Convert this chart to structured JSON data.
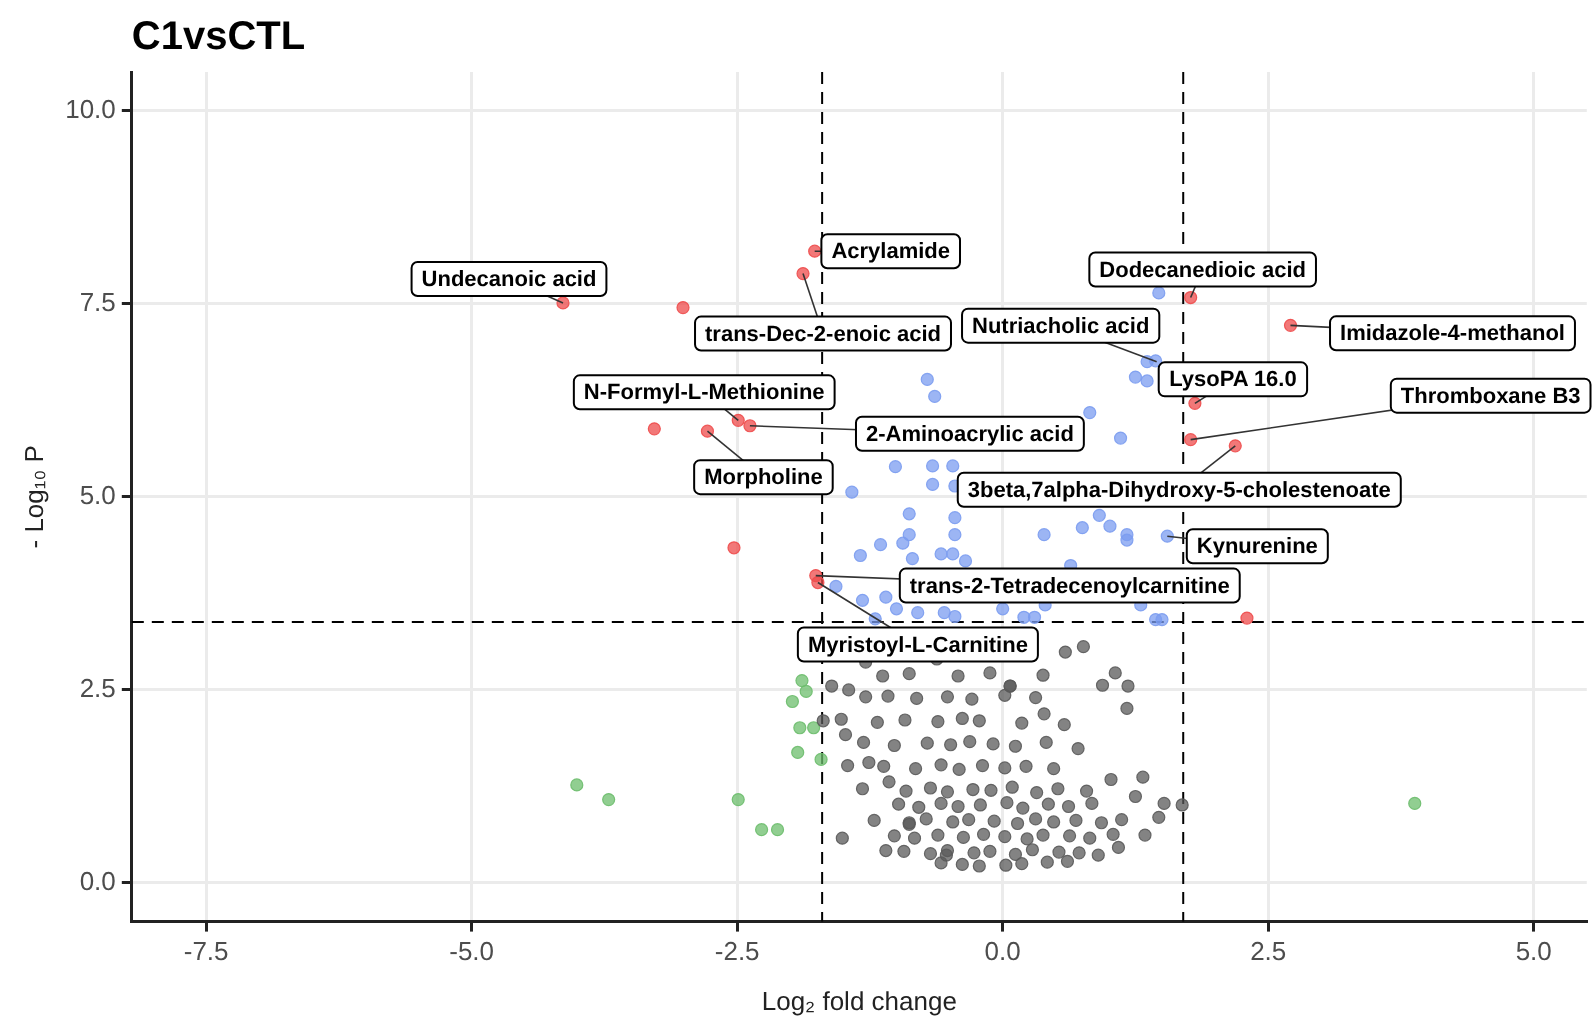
{
  "chart_data": {
    "type": "scatter",
    "title": "C1vsCTL",
    "xlabel": "Log₂ fold change",
    "ylabel": "- Log₁₀ P",
    "xlim": [
      -8.2,
      5.5
    ],
    "ylim": [
      -0.5,
      10.5
    ],
    "xticks": [
      -7.5,
      {
        "value": -5,
        "label": "-5.0"
      },
      -2.5,
      {
        "value": 0,
        "label": "0.0"
      },
      2.5,
      {
        "value": 5,
        "label": "5.0"
      }
    ],
    "yticks": [
      {
        "value": 0,
        "label": "0.0"
      },
      2.5,
      {
        "value": 5,
        "label": "5.0"
      },
      7.5,
      {
        "value": 10,
        "label": "10.0"
      }
    ],
    "grid": true,
    "legend": false,
    "marker": "circle",
    "ref_lines": [
      {
        "axis": "x",
        "value": -1.7,
        "line_style": "dashed",
        "color": "#000000"
      },
      {
        "axis": "x",
        "value": 1.7,
        "line_style": "dashed",
        "color": "#000000"
      },
      {
        "axis": "y",
        "value": 3.38,
        "line_style": "dashed",
        "color": "#000000"
      }
    ],
    "series": [
      {
        "color": "#5a5a5a",
        "x": [
          -1.61,
          -1.45,
          -1.29,
          -1.13,
          -1.48,
          -1.46,
          -1.26,
          -1.07,
          -0.88,
          -0.53,
          -1.29,
          -0.62,
          0.07,
          0.76,
          0.59,
          1.06,
          1.18,
          1.17,
          0.94,
          1.02,
          1.32,
          1.25,
          1.52,
          1.69,
          1.47,
          1.34,
          1.09,
          0.9,
          0.07,
          0.71,
          0.58,
          0.39,
          -1.51,
          -1.1,
          -1.69,
          -0.58,
          -0.38,
          -0.22,
          0.03,
          0.18,
          0.42,
          0.61,
          -0.93,
          -0.68,
          -0.52,
          -0.27,
          -0.12,
          0.12,
          0.28,
          0.53,
          0.72,
          -1.02,
          -0.83,
          -0.61,
          -0.37,
          -0.18,
          0.02,
          0.23,
          0.38,
          0.63,
          0.82,
          1.04,
          -1.21,
          -0.88,
          -0.72,
          -0.47,
          -0.32,
          -0.08,
          0.14,
          0.31,
          0.48,
          0.69,
          0.93,
          1.12,
          -0.98,
          -0.79,
          -0.58,
          -0.42,
          -0.21,
          0.04,
          0.19,
          0.43,
          0.62,
          0.84,
          -1.32,
          -0.91,
          -0.68,
          -0.52,
          -0.28,
          -0.11,
          0.09,
          0.32,
          0.52,
          0.79,
          -1.12,
          -0.82,
          -0.58,
          -0.41,
          -0.19,
          0.02,
          0.22,
          0.48,
          -1.31,
          -1.02,
          -0.71,
          -0.49,
          -0.31,
          -0.09,
          0.12,
          0.41,
          -1.52,
          -1.18,
          -0.92,
          -0.61,
          -0.38,
          -0.22,
          0.18,
          -1.08,
          -0.81,
          -0.52,
          -0.29,
          0.02,
          0.31,
          -0.88,
          -0.42,
          -0.12,
          0.38
        ],
        "values": [
          2.55,
          2.5,
          2.41,
          2.68,
          1.92,
          1.52,
          1.56,
          1.31,
          0.76,
          0.36,
          2.86,
          2.9,
          2.55,
          3.06,
          2.99,
          2.72,
          2.55,
          2.26,
          2.56,
          1.34,
          1.37,
          1.12,
          1.03,
          1.01,
          0.85,
          0.62,
          0.46,
          0.36,
          2.55,
          1.74,
          2.05,
          2.19,
          0.58,
          0.42,
          2.1,
          0.26,
          0.24,
          0.22,
          0.23,
          0.25,
          0.27,
          0.28,
          0.41,
          0.38,
          0.42,
          0.39,
          0.41,
          0.37,
          0.43,
          0.4,
          0.39,
          0.61,
          0.58,
          0.62,
          0.59,
          0.63,
          0.6,
          0.57,
          0.62,
          0.61,
          0.58,
          0.63,
          0.81,
          0.78,
          0.83,
          0.79,
          0.82,
          0.8,
          0.77,
          0.83,
          0.79,
          0.81,
          0.78,
          0.82,
          1.02,
          0.98,
          1.03,
          0.99,
          1.01,
          1.04,
          0.97,
          1.02,
          0.99,
          1.03,
          1.22,
          1.19,
          1.23,
          1.18,
          1.21,
          1.2,
          1.24,
          1.17,
          1.22,
          1.19,
          1.51,
          1.48,
          1.53,
          1.47,
          1.52,
          1.49,
          1.51,
          1.48,
          1.82,
          1.78,
          1.81,
          1.79,
          1.83,
          1.8,
          1.77,
          1.82,
          2.12,
          2.08,
          2.11,
          2.09,
          2.13,
          2.1,
          2.07,
          2.42,
          2.39,
          2.41,
          2.38,
          2.43,
          2.4,
          2.71,
          2.68,
          2.72,
          2.69
        ]
      },
      {
        "color": "#6cbd6c",
        "x": [
          -4.01,
          -3.71,
          -2.49,
          -2.27,
          -2.12,
          -1.89,
          -1.85,
          -1.98,
          -1.91,
          -1.78,
          -1.93,
          -1.71,
          3.88
        ],
        "values": [
          1.27,
          1.08,
          1.08,
          0.69,
          0.69,
          2.62,
          2.48,
          2.35,
          2.01,
          2.01,
          1.69,
          1.6,
          1.03
        ]
      },
      {
        "color": "#7b9cf0",
        "x": [
          -1.01,
          -1.42,
          -0.88,
          -1.34,
          -1.15,
          -0.94,
          -0.88,
          -0.85,
          -1.57,
          -1.32,
          -1.2,
          1.47,
          1.36,
          1.44,
          1.25,
          1.36,
          -0.71,
          -0.64,
          0.82,
          1.11,
          -0.66,
          -0.47,
          -0.66,
          -0.45,
          -0.45,
          -0.45,
          0.39,
          0.75,
          0.91,
          1.01,
          1.17,
          1.17,
          1.55,
          -0.58,
          -0.47,
          -0.35,
          0.64,
          1.44,
          1.5,
          -1.0,
          -0.8,
          -0.55,
          -0.45,
          0.2,
          0.3,
          0.4,
          0.0,
          -1.1,
          1.3
        ],
        "values": [
          5.39,
          5.06,
          4.78,
          4.24,
          4.38,
          4.4,
          4.51,
          4.2,
          3.84,
          3.66,
          3.42,
          7.64,
          6.75,
          6.76,
          6.55,
          6.5,
          6.52,
          6.3,
          6.09,
          5.76,
          5.4,
          5.4,
          5.16,
          5.14,
          4.73,
          4.51,
          4.51,
          4.6,
          4.76,
          4.62,
          4.51,
          4.44,
          4.49,
          4.26,
          4.26,
          4.17,
          4.11,
          3.41,
          3.41,
          3.55,
          3.5,
          3.5,
          3.45,
          3.44,
          3.44,
          3.6,
          3.55,
          3.7,
          3.6
        ]
      },
      {
        "color": "#ee4b4b",
        "x": [
          -1.77,
          -1.88,
          -4.14,
          -3.01,
          -3.28,
          -2.78,
          -2.49,
          -2.38,
          -2.53,
          -1.76,
          -1.74,
          1.77,
          2.71,
          1.81,
          1.77,
          2.19,
          2.3
        ],
        "values": [
          8.18,
          7.89,
          7.51,
          7.45,
          5.88,
          5.85,
          5.99,
          5.92,
          4.34,
          3.98,
          3.89,
          7.58,
          7.22,
          6.21,
          5.74,
          5.66,
          3.43
        ]
      }
    ],
    "annotations": [
      {
        "text": "Undecanoic acid",
        "x": -4.14,
        "y": 7.51
      },
      {
        "text": "Acrylamide",
        "x": -1.77,
        "y": 8.18
      },
      {
        "text": "trans-Dec-2-enoic acid",
        "x": -1.88,
        "y": 7.89
      },
      {
        "text": "Dodecanedioic acid",
        "x": 1.77,
        "y": 7.58
      },
      {
        "text": "Nutriacholic acid",
        "x": 1.45,
        "y": 6.75
      },
      {
        "text": "LysoPA 16.0",
        "x": 1.81,
        "y": 6.21
      },
      {
        "text": "Imidazole-4-methanol",
        "x": 2.71,
        "y": 7.22
      },
      {
        "text": "N-Formyl-L-Methionine",
        "x": -2.49,
        "y": 5.99
      },
      {
        "text": "2-Aminoacrylic acid",
        "x": -2.38,
        "y": 5.92
      },
      {
        "text": "Morpholine",
        "x": -2.78,
        "y": 5.85
      },
      {
        "text": "3beta,7alpha-Dihydroxy-5-cholestenoate",
        "x": 2.19,
        "y": 5.66
      },
      {
        "text": "Thromboxane B3",
        "x": 1.77,
        "y": 5.74
      },
      {
        "text": "Kynurenine",
        "x": 1.55,
        "y": 4.49
      },
      {
        "text": "trans-2-Tetradecenoylcarnitine",
        "x": -1.76,
        "y": 3.98
      },
      {
        "text": "Myristoyl-L-Carnitine",
        "x": -1.74,
        "y": 3.89
      }
    ]
  }
}
